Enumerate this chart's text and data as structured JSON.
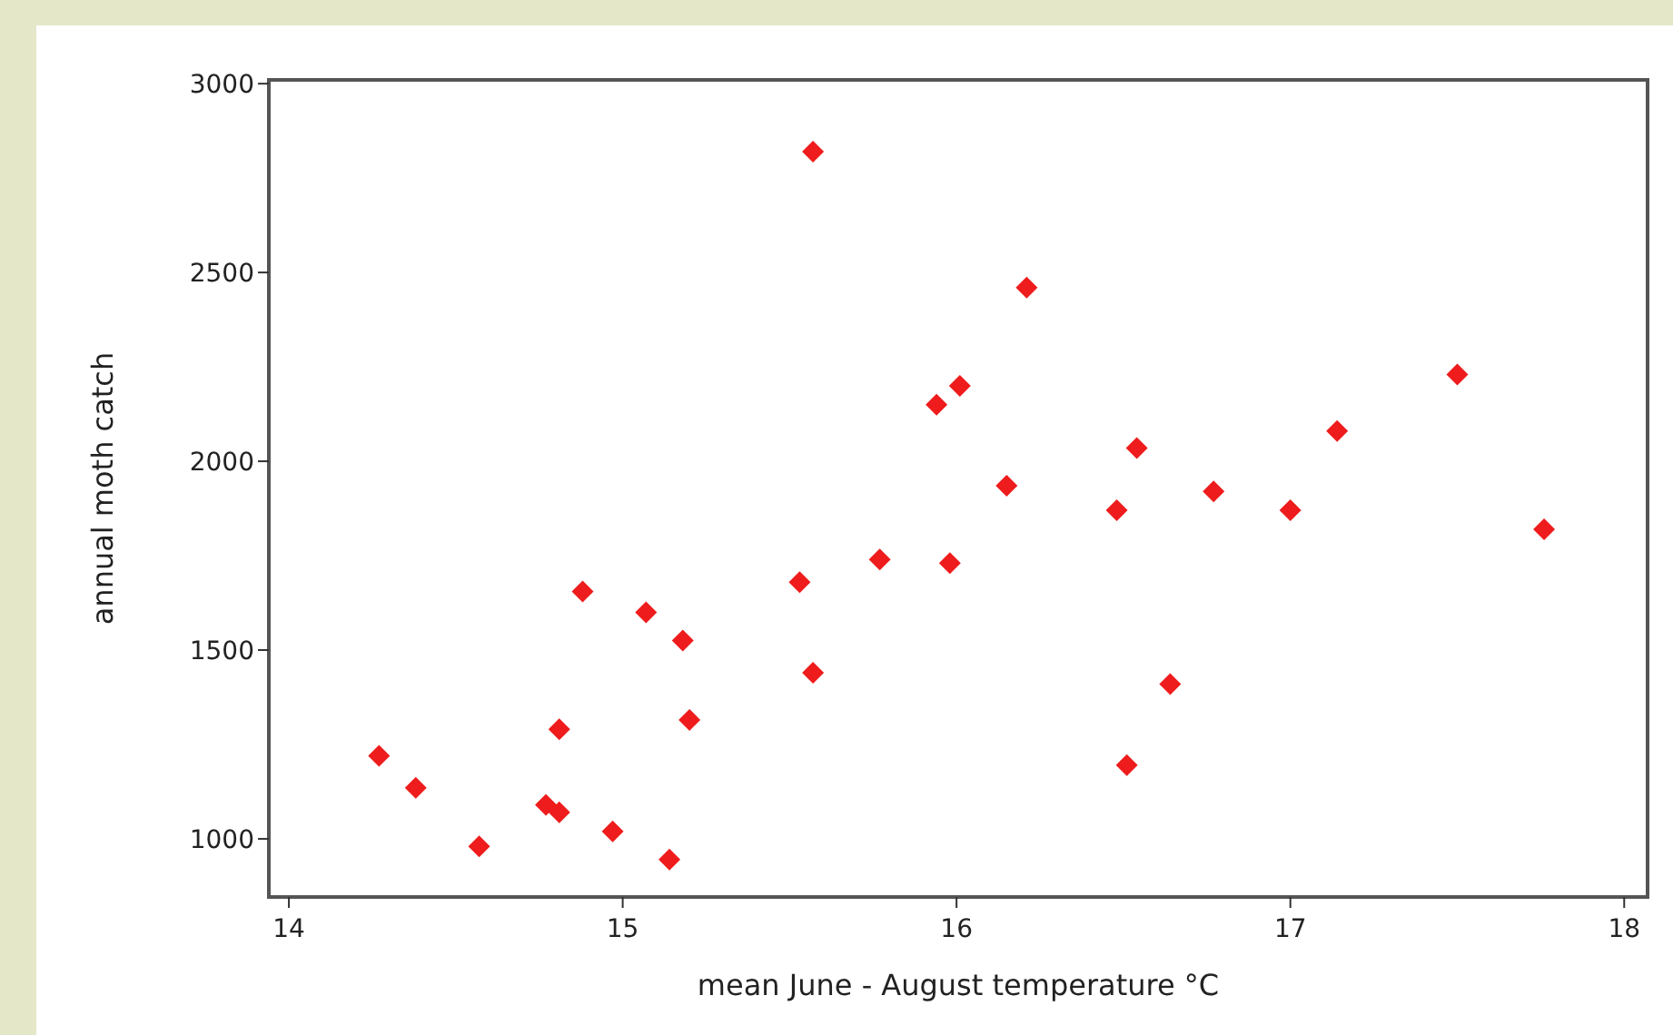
{
  "chart_data": {
    "type": "scatter",
    "xlabel": "mean June - August temperature °C",
    "ylabel": "annual moth catch",
    "xlim": [
      13.94,
      18.07
    ],
    "ylim": [
      846,
      3010
    ],
    "xticks": [
      14,
      15,
      16,
      17,
      18
    ],
    "yticks": [
      1000,
      1500,
      2000,
      2500,
      3000
    ],
    "marker": "diamond",
    "grid": false,
    "series": [
      {
        "color": "#ee1c1c",
        "x": [
          14.27,
          14.38,
          14.57,
          14.77,
          14.81,
          14.81,
          14.88,
          14.97,
          15.07,
          15.14,
          15.18,
          15.2,
          15.57,
          15.53,
          15.57,
          15.77,
          15.94,
          16.01,
          15.98,
          16.21,
          16.15,
          16.48,
          16.54,
          16.51,
          16.64,
          16.77,
          17.0,
          17.14,
          17.5,
          17.76
        ],
        "values": [
          1220,
          1135,
          980,
          1090,
          1070,
          1290,
          1655,
          1020,
          1600,
          945,
          1525,
          1315,
          2820,
          1680,
          1440,
          1740,
          2150,
          2200,
          1730,
          2460,
          1935,
          1870,
          2035,
          1195,
          1410,
          1920,
          1870,
          2080,
          2230,
          1820
        ]
      }
    ]
  }
}
